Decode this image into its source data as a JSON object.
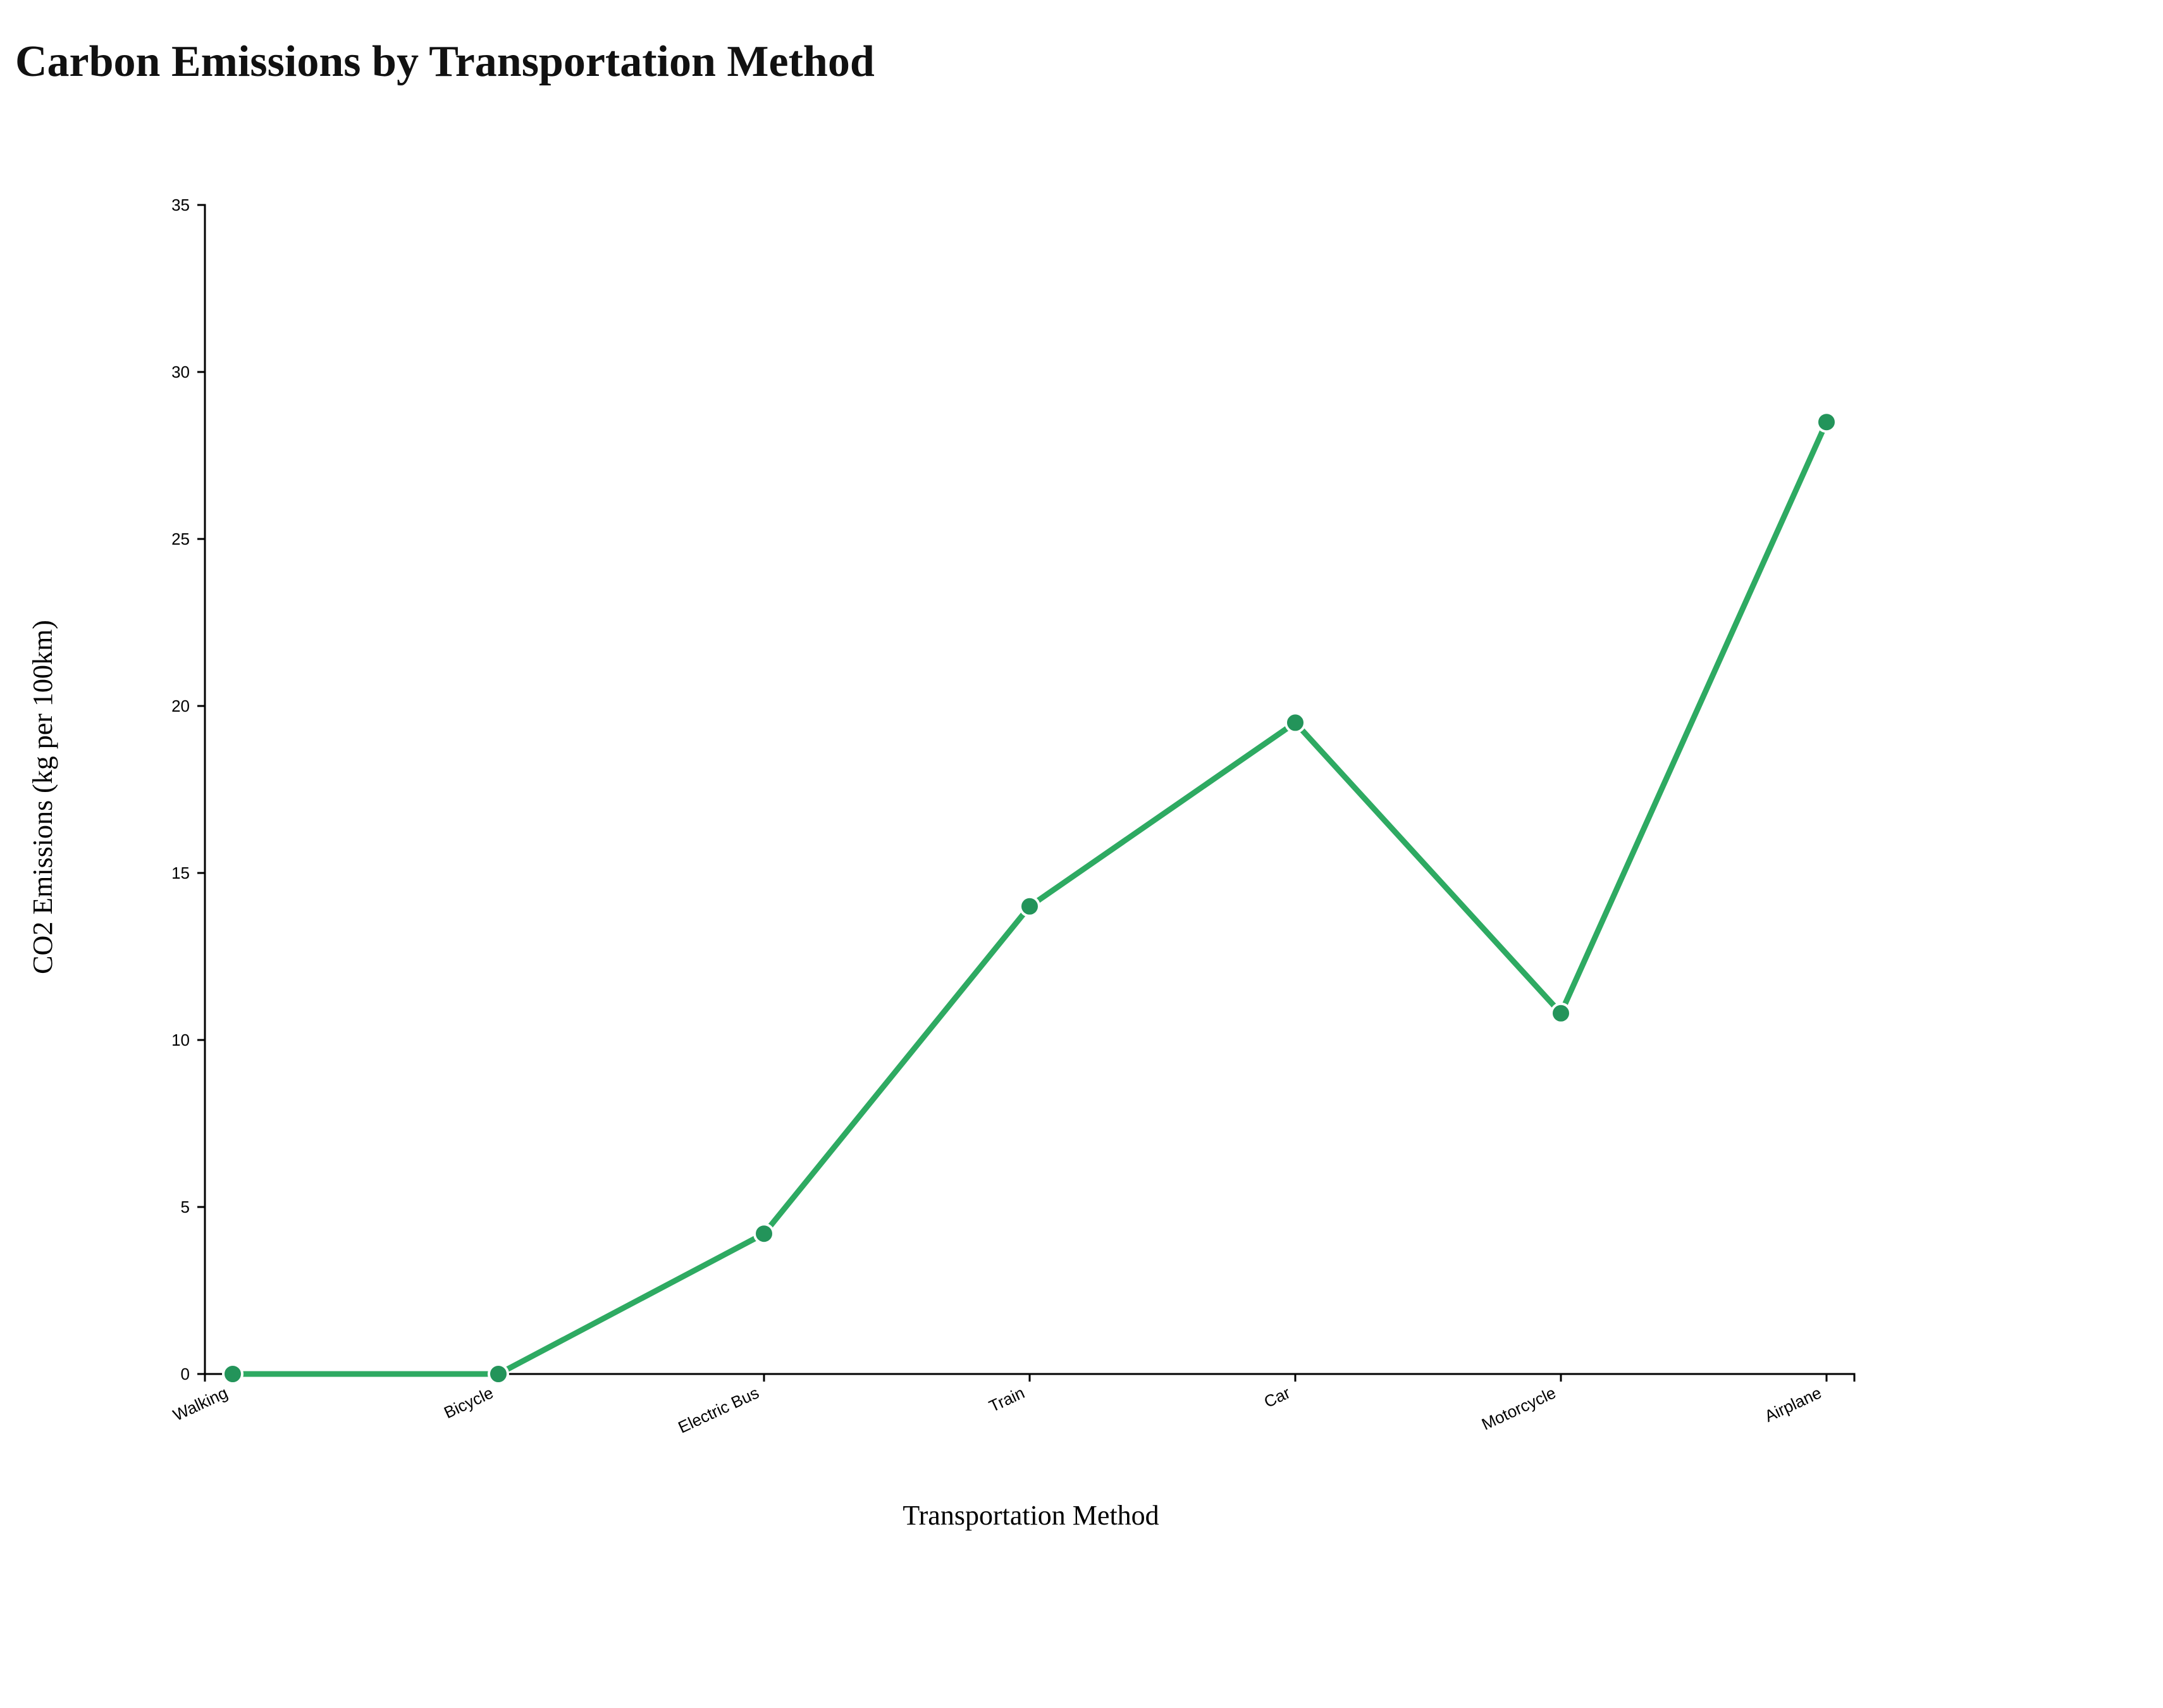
{
  "chart_data": {
    "type": "line",
    "title": "Carbon Emissions by Transportation Method",
    "xlabel": "Transportation Method",
    "ylabel": "CO2 Emissions (kg per 100km)",
    "categories": [
      "Walking",
      "Bicycle",
      "Electric Bus",
      "Train",
      "Car",
      "Motorcycle",
      "Airplane"
    ],
    "series": [
      {
        "values": [
          0,
          0,
          4.2,
          14,
          19.5,
          10.8,
          28.5
        ]
      }
    ],
    "ylim": [
      0,
      35
    ],
    "yticks": [
      0,
      5,
      10,
      15,
      20,
      25,
      30,
      35
    ],
    "grid": false,
    "legend": "none"
  },
  "colors": {
    "line": "#2eaa62",
    "marker": "#23945a",
    "marker_stroke": "#ffffff",
    "axis": "#000000"
  }
}
